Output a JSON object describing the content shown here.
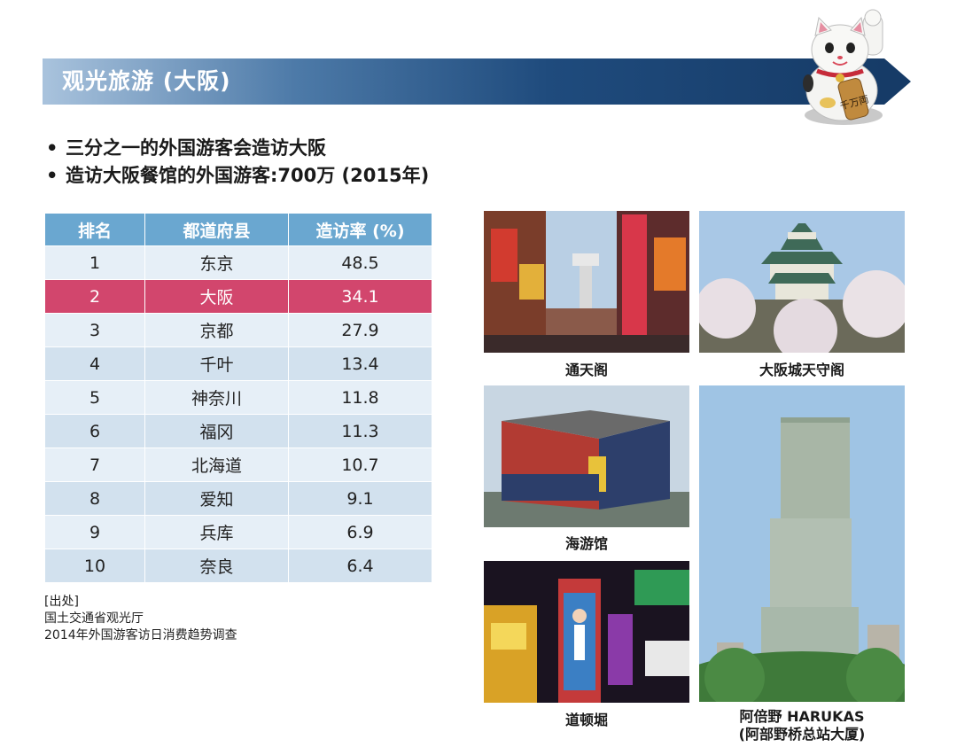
{
  "header": {
    "title": "观光旅游 (大阪)"
  },
  "bullets": [
    "三分之一的外国游客会造访大阪",
    "造访大阪餐馆的外国游客:700万 (2015年)"
  ],
  "table": {
    "headers": [
      "排名",
      "都道府县",
      "造访率 (%)"
    ],
    "rows": [
      [
        "1",
        "东京",
        "48.5"
      ],
      [
        "2",
        "大阪",
        "34.1"
      ],
      [
        "3",
        "京都",
        "27.9"
      ],
      [
        "4",
        "千叶",
        "13.4"
      ],
      [
        "5",
        "神奈川",
        "11.8"
      ],
      [
        "6",
        "福冈",
        "11.3"
      ],
      [
        "7",
        "北海道",
        "10.7"
      ],
      [
        "8",
        "爱知",
        "9.1"
      ],
      [
        "9",
        "兵库",
        "6.9"
      ],
      [
        "10",
        "奈良",
        "6.4"
      ]
    ],
    "highlight_color": "#d2466d",
    "header_color": "#6aa7d0"
  },
  "source": {
    "label": "[出处]",
    "line1": "国土交通省观光厅",
    "line2": "2014年外国游客访日消费趋势调查"
  },
  "photos": {
    "tsutenkaku": "通天阁",
    "osaka_castle": "大阪城天守阁",
    "aquarium": "海游馆",
    "dotonbori": "道顿堀",
    "harukas_line1": "阿倍野 HARUKAS",
    "harukas_line2": "(阿部野桥总站大厦)"
  },
  "cat_badge": "千万両"
}
